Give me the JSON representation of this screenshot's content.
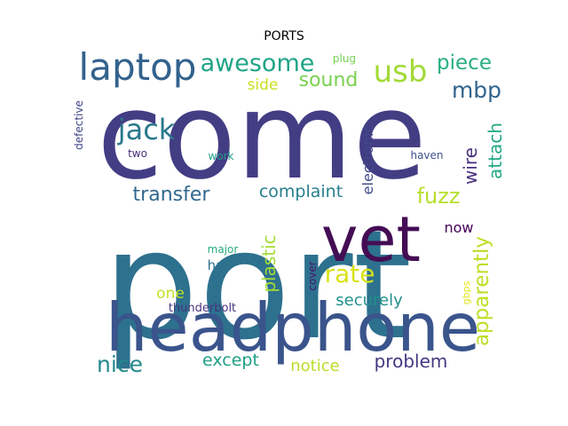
{
  "title": "PORTS",
  "chart_data": {
    "type": "wordcloud",
    "title": "PORTS",
    "words": [
      {
        "text": "come",
        "color": "#433d84"
      },
      {
        "text": "port",
        "color": "#2d718e"
      },
      {
        "text": "headphone",
        "color": "#3a548c"
      },
      {
        "text": "vet",
        "color": "#440d54"
      },
      {
        "text": "laptop",
        "color": "#33628d"
      },
      {
        "text": "usb",
        "color": "#a2da37"
      },
      {
        "text": "awesome",
        "color": "#20a486"
      },
      {
        "text": "piece",
        "color": "#29af7f"
      },
      {
        "text": "sound",
        "color": "#7ad151"
      },
      {
        "text": "side",
        "color": "#c8e020"
      },
      {
        "text": "plug",
        "color": "#75d054"
      },
      {
        "text": "mbp",
        "color": "#32648e"
      },
      {
        "text": "jack",
        "color": "#2a788e"
      },
      {
        "text": "attach",
        "color": "#22a884"
      },
      {
        "text": "wire",
        "color": "#472f7d"
      },
      {
        "text": "electronic",
        "color": "#3e4989"
      },
      {
        "text": "defective",
        "color": "#414487"
      },
      {
        "text": "two",
        "color": "#472c7a"
      },
      {
        "text": "work",
        "color": "#1f9e89"
      },
      {
        "text": "haven",
        "color": "#3b528b"
      },
      {
        "text": "transfer",
        "color": "#31688e"
      },
      {
        "text": "complaint",
        "color": "#277f8e"
      },
      {
        "text": "fuzz",
        "color": "#b5de2b"
      },
      {
        "text": "apparently",
        "color": "#bddf26"
      },
      {
        "text": "now",
        "color": "#440154"
      },
      {
        "text": "rate",
        "color": "#d8e219"
      },
      {
        "text": "plastic",
        "color": "#a5db36"
      },
      {
        "text": "major",
        "color": "#25ac82"
      },
      {
        "text": "ha",
        "color": "#2c728e"
      },
      {
        "text": "cover",
        "color": "#481467"
      },
      {
        "text": "gbps",
        "color": "#e5e419"
      },
      {
        "text": "securely",
        "color": "#21918c"
      },
      {
        "text": "one",
        "color": "#c2df23"
      },
      {
        "text": "thunderbolt",
        "color": "#46337e"
      },
      {
        "text": "nice",
        "color": "#23898e"
      },
      {
        "text": "except",
        "color": "#1fa088"
      },
      {
        "text": "notice",
        "color": "#b8de29"
      },
      {
        "text": "problem",
        "color": "#453882"
      }
    ]
  }
}
